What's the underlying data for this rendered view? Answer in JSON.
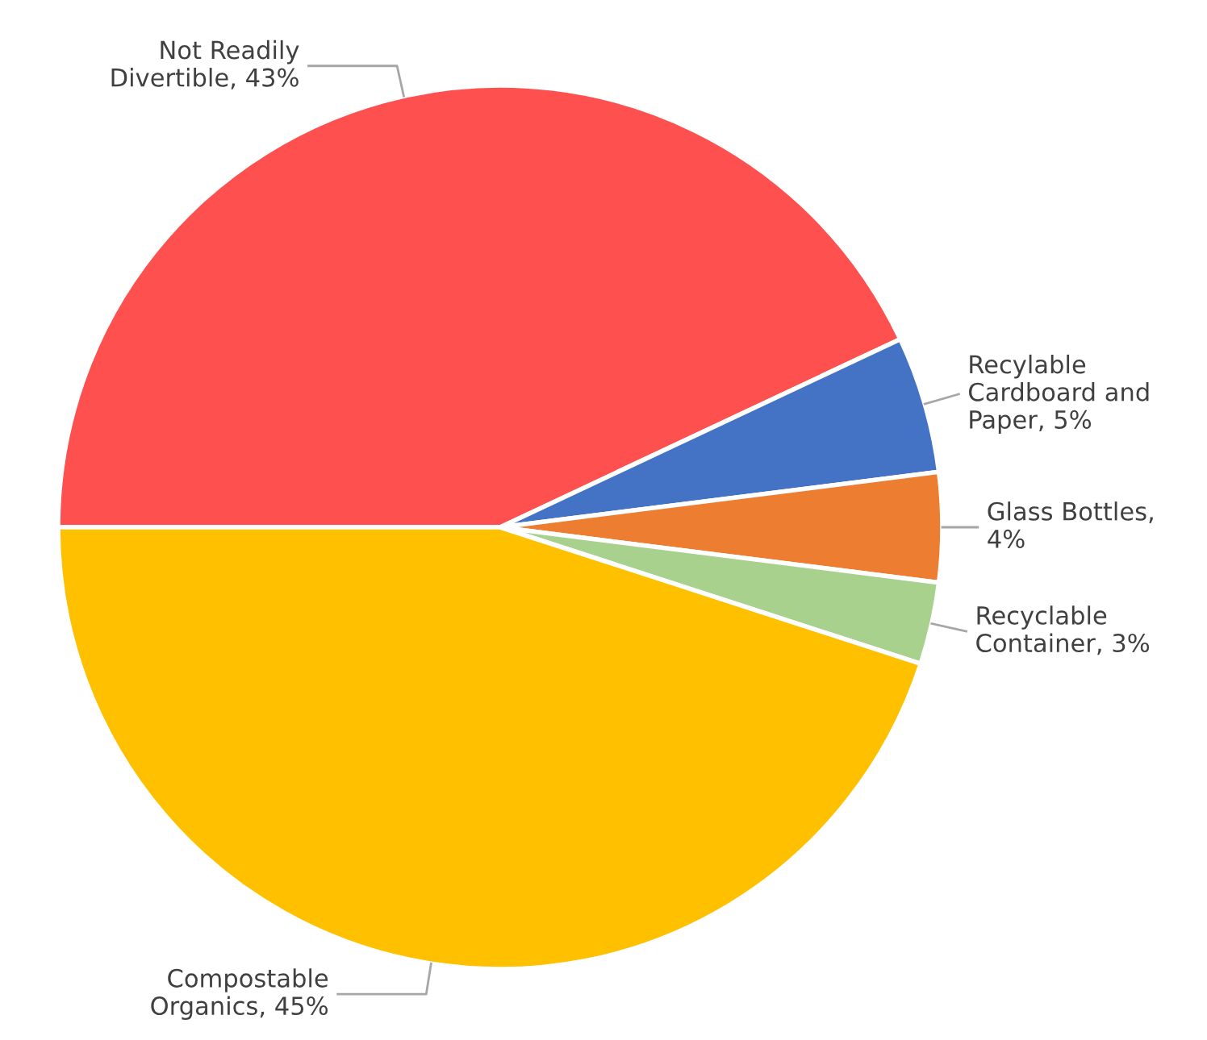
{
  "chart_data": {
    "type": "pie",
    "categories": [
      "Not Readily Divertible, 43%",
      "Recylable Cardboard and Paper, 5%",
      "Glass Bottles, 4%",
      "Recyclable Container, 3%",
      "Compostable Organics, 45%"
    ],
    "values": [
      43,
      5,
      4,
      3,
      45
    ],
    "colors": [
      "#ff5050",
      "#4472c4",
      "#ed7d31",
      "#a9d18e",
      "#ffc000"
    ],
    "legend": false
  }
}
